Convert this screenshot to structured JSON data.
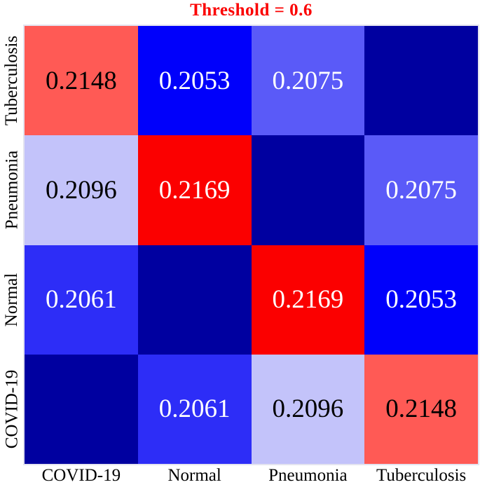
{
  "title": {
    "text": "Threshold = 0.6",
    "color": "#fb0000"
  },
  "chart_data": {
    "type": "heatmap",
    "title": "Threshold = 0.6",
    "title_color": "#fb0000",
    "legend": "none",
    "grid": "off",
    "x_categories": [
      "COVID-19",
      "Normal",
      "Pneumonia",
      "Tuberculosis"
    ],
    "y_categories_top_to_bottom": [
      "Tuberculosis",
      "Pneumonia",
      "Normal",
      "COVID-19"
    ],
    "empty_cell_note": "anti-diagonal cells have no printed value",
    "rows": [
      {
        "label": "Tuberculosis",
        "cells": [
          {
            "value": "0.2148",
            "bg": "#ff5a55",
            "fg": "#000000"
          },
          {
            "value": "0.2053",
            "bg": "#0000fb",
            "fg": "#ffffff"
          },
          {
            "value": "0.2075",
            "bg": "#5a5af8",
            "fg": "#ffffff"
          },
          {
            "value": "",
            "bg": "#0000a0",
            "fg": "#ffffff"
          }
        ]
      },
      {
        "label": "Pneumonia",
        "cells": [
          {
            "value": "0.2096",
            "bg": "#c3c3fa",
            "fg": "#000000"
          },
          {
            "value": "0.2169",
            "bg": "#fb0000",
            "fg": "#ffffff"
          },
          {
            "value": "",
            "bg": "#0000a0",
            "fg": "#ffffff"
          },
          {
            "value": "0.2075",
            "bg": "#5a5af8",
            "fg": "#ffffff"
          }
        ]
      },
      {
        "label": "Normal",
        "cells": [
          {
            "value": "0.2061",
            "bg": "#2d2df7",
            "fg": "#ffffff"
          },
          {
            "value": "",
            "bg": "#0000a0",
            "fg": "#ffffff"
          },
          {
            "value": "0.2169",
            "bg": "#fb0000",
            "fg": "#ffffff"
          },
          {
            "value": "0.2053",
            "bg": "#0000fb",
            "fg": "#ffffff"
          }
        ]
      },
      {
        "label": "COVID-19",
        "cells": [
          {
            "value": "",
            "bg": "#0000a0",
            "fg": "#ffffff"
          },
          {
            "value": "0.2061",
            "bg": "#2d2df7",
            "fg": "#ffffff"
          },
          {
            "value": "0.2096",
            "bg": "#c3c3fa",
            "fg": "#000000"
          },
          {
            "value": "0.2148",
            "bg": "#ff5a55",
            "fg": "#000000"
          }
        ]
      }
    ]
  }
}
